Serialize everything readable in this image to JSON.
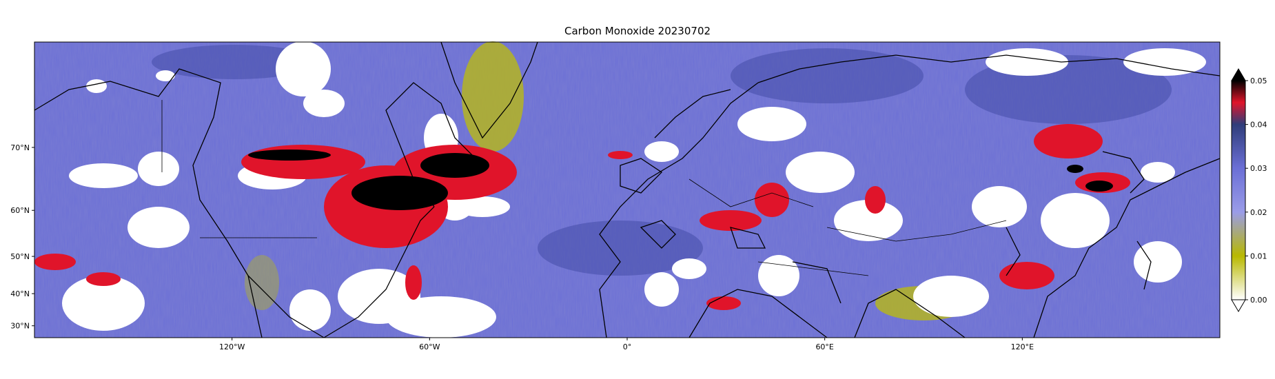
{
  "title": "Carbon Monoxide 20230702",
  "map": {
    "projection": "equirectangular",
    "lon_range": [
      -180,
      180
    ],
    "lat_range": [
      25,
      80
    ],
    "background_color": "#6b6fd6",
    "coastline_color": "#000000",
    "lon_ticks": [
      {
        "value": -120,
        "label": "120°W"
      },
      {
        "value": -60,
        "label": "60°W"
      },
      {
        "value": 0,
        "label": "0°"
      },
      {
        "value": 60,
        "label": "60°E"
      },
      {
        "value": 120,
        "label": "120°E"
      }
    ],
    "lat_ticks": [
      {
        "value": 70,
        "label": "70°N"
      },
      {
        "value": 60,
        "label": "60°N"
      },
      {
        "value": 50,
        "label": "50°N"
      },
      {
        "value": 40,
        "label": "40°N"
      },
      {
        "value": 30,
        "label": "30°N"
      }
    ]
  },
  "colorbar": {
    "range": [
      0,
      0.05
    ],
    "extend": "both",
    "ticks": [
      "0.00",
      "0.01",
      "0.02",
      "0.03",
      "0.04",
      "0.05"
    ],
    "colors": [
      "#ffffff",
      "#b8b800",
      "#7b7fe0",
      "#3a3f8c",
      "#e0142a",
      "#000000"
    ]
  }
}
